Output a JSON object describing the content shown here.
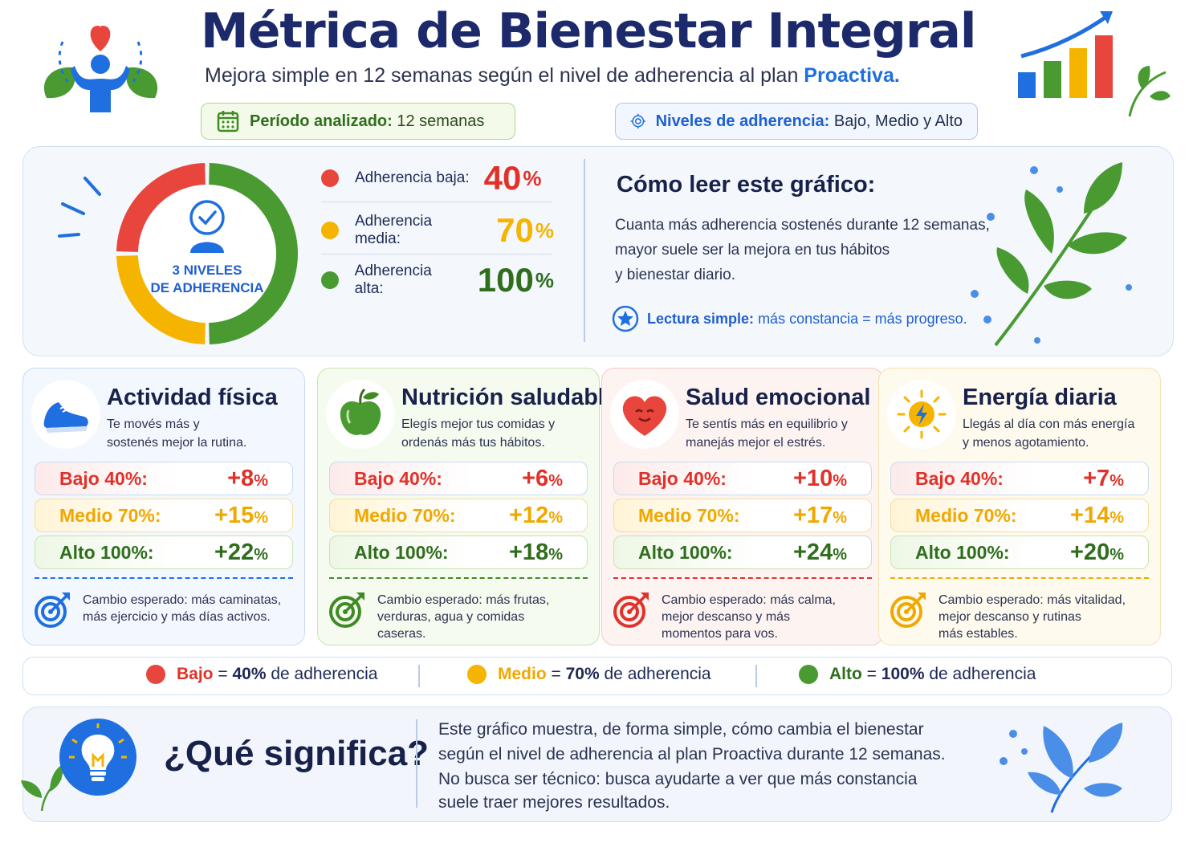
{
  "header": {
    "title": "Métrica de Bienestar Integral",
    "subtitle_prefix": "Mejora simple en 12 semanas según el nivel de adherencia al plan",
    "subtitle_highlight": "Proactiva.",
    "period_label": "Período analizado:",
    "period_value": "12 semanas",
    "levels_label": "Niveles de adherencia:",
    "levels_value": "Bajo, Medio y Alto"
  },
  "overview": {
    "donut_label_line1": "3 NIVELES",
    "donut_label_line2": "DE ADHERENCIA",
    "rows": [
      {
        "label": "Adherencia baja:",
        "value": "40",
        "unit": "%",
        "color": "#e0322a"
      },
      {
        "label": "Adherencia media:",
        "value": "70",
        "unit": "%",
        "color": "#f5b400"
      },
      {
        "label": "Adherencia alta:",
        "value": "100",
        "unit": "%",
        "color": "#2f6e1d"
      }
    ],
    "donut_segments": [
      {
        "name": "alto",
        "fraction": 0.5,
        "color": "#4a9a32"
      },
      {
        "name": "medio",
        "fraction": 0.25,
        "color": "#f5b400"
      },
      {
        "name": "bajo",
        "fraction": 0.25,
        "color": "#e8453c"
      }
    ]
  },
  "how_to_read": {
    "title": "Cómo leer este gráfico:",
    "lines": [
      "Cuanta más adherencia sostenés durante 12 semanas,",
      "mayor suele ser la mejora en tus hábitos",
      "y bienestar diario."
    ],
    "simple_label": "Lectura simple:",
    "simple_text": "más constancia = más progreso."
  },
  "categories": [
    {
      "title": "Actividad física",
      "desc": [
        "Te movés más y",
        "sostenés mejor la rutina."
      ],
      "levels": [
        {
          "label": "Bajo 40%:",
          "value": "+8",
          "unit": "%"
        },
        {
          "label": "Medio 70%:",
          "value": "+15",
          "unit": "%"
        },
        {
          "label": "Alto 100%:",
          "value": "+22",
          "unit": "%"
        }
      ],
      "expected": [
        "Cambio esperado: más caminatas,",
        "más ejercicio y más días activos."
      ],
      "accent": "#1f6fe0",
      "bg": "#f3f8ff",
      "border": "#c6dbf5",
      "icon": "sneaker-icon"
    },
    {
      "title": "Nutrición saludable",
      "desc": [
        "Elegís mejor tus comidas y",
        "ordenás más tus hábitos."
      ],
      "levels": [
        {
          "label": "Bajo 40%:",
          "value": "+6",
          "unit": "%"
        },
        {
          "label": "Medio 70%:",
          "value": "+12",
          "unit": "%"
        },
        {
          "label": "Alto 100%:",
          "value": "+18",
          "unit": "%"
        }
      ],
      "expected": [
        "Cambio esperado: más frutas,",
        "verduras, agua y comidas",
        "caseras."
      ],
      "accent": "#3f8a22",
      "bg": "#f5fbef",
      "border": "#c7e4b1",
      "icon": "apple-icon"
    },
    {
      "title": "Salud emocional",
      "desc": [
        "Te sentís más en equilibrio y",
        "manejás mejor el estrés."
      ],
      "levels": [
        {
          "label": "Bajo 40%:",
          "value": "+10",
          "unit": "%"
        },
        {
          "label": "Medio 70%:",
          "value": "+17",
          "unit": "%"
        },
        {
          "label": "Alto 100%:",
          "value": "+24",
          "unit": "%"
        }
      ],
      "expected": [
        "Cambio esperado: más calma,",
        "mejor descanso y más",
        "momentos para vos."
      ],
      "accent": "#e0322a",
      "bg": "#fdf3f1",
      "border": "#f2c9c3",
      "icon": "heart-icon"
    },
    {
      "title": "Energía diaria",
      "desc": [
        "Llegás al día con más energía",
        "y menos agotamiento."
      ],
      "levels": [
        {
          "label": "Bajo 40%:",
          "value": "+7",
          "unit": "%"
        },
        {
          "label": "Medio 70%:",
          "value": "+14",
          "unit": "%"
        },
        {
          "label": "Alto 100%:",
          "value": "+20",
          "unit": "%"
        }
      ],
      "expected": [
        "Cambio esperado: más vitalidad,",
        "mejor descanso y rutinas",
        "más estables."
      ],
      "accent": "#f0a800",
      "bg": "#fffaee",
      "border": "#f5e1b2",
      "icon": "sun-bolt-icon"
    }
  ],
  "legend": [
    {
      "name": "Bajo",
      "eq": "=",
      "pct": "40%",
      "suffix": "de adherencia",
      "color": "#e8453c"
    },
    {
      "name": "Medio",
      "eq": "=",
      "pct": "70%",
      "suffix": "de adherencia",
      "color": "#f5b400"
    },
    {
      "name": "Alto",
      "eq": "=",
      "pct": "100%",
      "suffix": "de adherencia",
      "color": "#4a9a32"
    }
  ],
  "meaning": {
    "title": "¿Qué significa?",
    "lines": [
      "Este gráfico muestra, de forma simple, cómo cambia el bienestar",
      "según el nivel de adherencia al plan Proactiva durante 12 semanas.",
      "No busca ser técnico: busca ayudarte a ver que más constancia",
      "suele traer mejores resultados."
    ]
  }
}
